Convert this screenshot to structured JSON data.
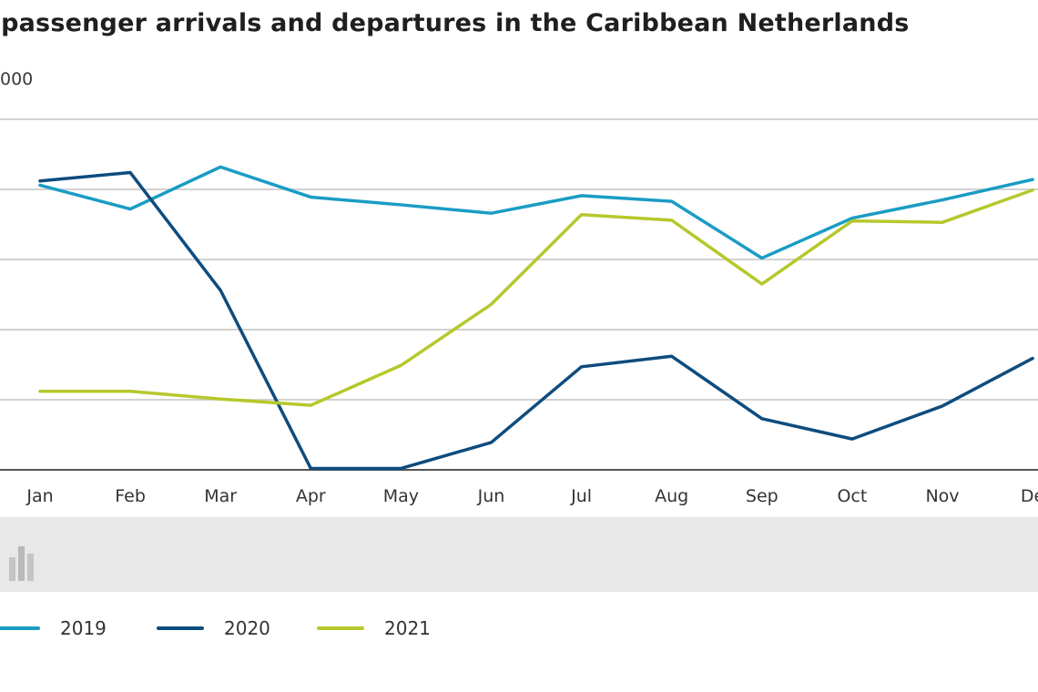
{
  "chart_data": {
    "type": "line",
    "title": "r passenger arrivals and departures in the Caribbean Netherlands",
    "ylabel": "000",
    "categories": [
      "Jan",
      "Feb",
      "Mar",
      "Apr",
      "May",
      "Jun",
      "Jul",
      "Aug",
      "Sep",
      "Oct",
      "Nov",
      "De"
    ],
    "ylim": [
      0,
      50
    ],
    "grid": true,
    "legend_position": "bottom-left",
    "series": [
      {
        "name": "2019",
        "color": "#1a9cc4",
        "values": [
          40.6,
          37.2,
          43.2,
          38.9,
          37.8,
          36.6,
          39.1,
          38.3,
          30.2,
          35.9,
          38.5,
          41.4
        ]
      },
      {
        "name": "2020",
        "color": "#0e4c7e",
        "values": [
          41.2,
          42.4,
          25.6,
          0.2,
          0.2,
          3.9,
          14.7,
          16.2,
          7.3,
          4.4,
          9.1,
          15.9
        ]
      },
      {
        "name": "2021",
        "color": "#b6c82c",
        "values": [
          11.2,
          11.2,
          10.1,
          9.2,
          14.9,
          23.6,
          36.4,
          35.6,
          26.5,
          35.5,
          35.3,
          39.9
        ]
      }
    ]
  }
}
